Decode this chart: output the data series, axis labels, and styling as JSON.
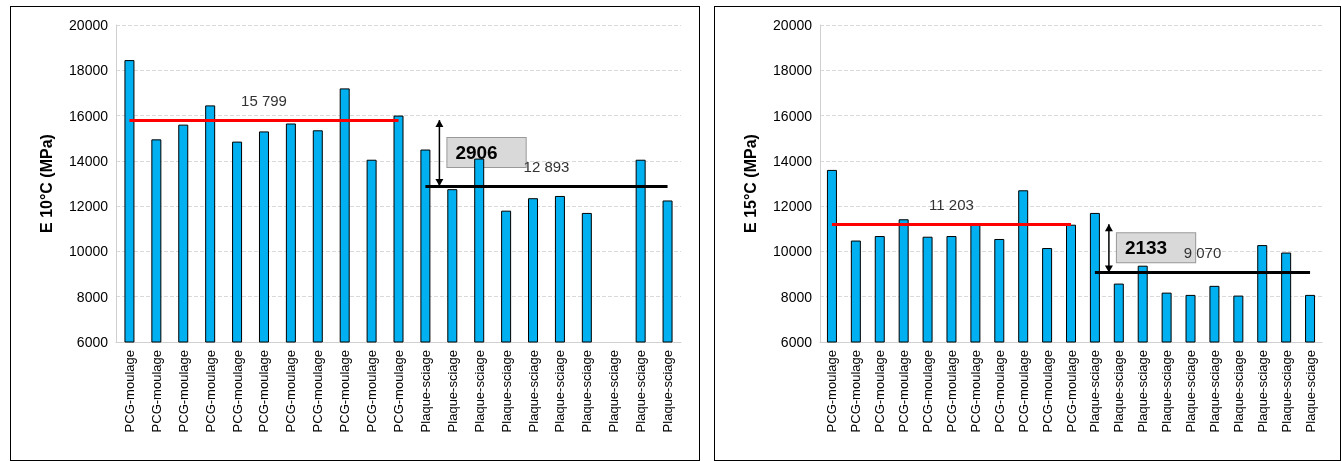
{
  "chart_data": [
    {
      "type": "bar",
      "ylabel": "E 10°C (MPa)",
      "categories": [
        "PCG-moulage",
        "PCG-moulage",
        "PCG-moulage",
        "PCG-moulage",
        "PCG-moulage",
        "PCG-moulage",
        "PCG-moulage",
        "PCG-moulage",
        "PCG-moulage",
        "PCG-moulage",
        "PCG-moulage",
        "Plaque-sciage",
        "Plaque-sciage",
        "Plaque-sciage",
        "Plaque-sciage",
        "Plaque-sciage",
        "Plaque-sciage",
        "Plaque-sciage",
        "Plaque-sciage",
        "Plaque-sciage",
        "Plaque-sciage"
      ],
      "values": [
        18450,
        14950,
        15600,
        16450,
        14850,
        15300,
        15650,
        15350,
        17200,
        14050,
        16000,
        14500,
        12750,
        14100,
        11800,
        12350,
        12450,
        11700,
        null,
        14050,
        12250
      ],
      "color": "#00b0f0",
      "ylim": [
        6000,
        20000
      ],
      "yticks": [
        6000,
        8000,
        10000,
        12000,
        14000,
        16000,
        18000,
        20000
      ],
      "grid": true,
      "ref_lines": [
        {
          "axis": "y",
          "value": 15799,
          "label": "15 799",
          "color": "#ff0000"
        },
        {
          "axis": "y",
          "value": 12893,
          "label": "12 893",
          "color": "#000000"
        }
      ],
      "annotations": [
        "2906"
      ]
    },
    {
      "type": "bar",
      "ylabel": "E 15°C (MPa)",
      "categories": [
        "PCG-moulage",
        "PCG-moulage",
        "PCG-moulage",
        "PCG-moulage",
        "PCG-moulage",
        "PCG-moulage",
        "PCG-moulage",
        "PCG-moulage",
        "PCG-moulage",
        "PCG-moulage",
        "PCG-moulage",
        "Plaque-sciage",
        "Plaque-sciage",
        "Plaque-sciage",
        "Plaque-sciage",
        "Plaque-sciage",
        "Plaque-sciage",
        "Plaque-sciage",
        "Plaque-sciage",
        "Plaque-sciage",
        "Plaque-sciage"
      ],
      "values": [
        13600,
        10480,
        10680,
        11420,
        10650,
        10680,
        11200,
        10550,
        12700,
        10150,
        11180,
        11700,
        8580,
        9370,
        8180,
        8080,
        8480,
        8050,
        10280,
        9950,
        8080
      ],
      "color": "#00b0f0",
      "ylim": [
        6000,
        20000
      ],
      "yticks": [
        6000,
        8000,
        10000,
        12000,
        14000,
        16000,
        18000,
        20000
      ],
      "grid": true,
      "ref_lines": [
        {
          "axis": "y",
          "value": 11203,
          "label": "11 203",
          "color": "#ff0000"
        },
        {
          "axis": "y",
          "value": 9070,
          "label": "9 070",
          "color": "#000000"
        }
      ],
      "annotations": [
        "2133"
      ]
    }
  ]
}
